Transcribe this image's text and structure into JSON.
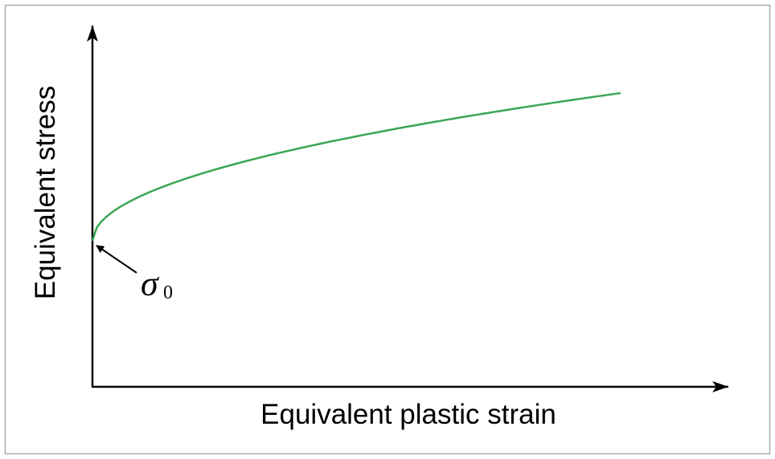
{
  "y_axis": {
    "label": "Equivalent stress"
  },
  "x_axis": {
    "label": "Equivalent plastic strain"
  },
  "annotation": {
    "symbol": "σ",
    "subscript": "0"
  }
}
